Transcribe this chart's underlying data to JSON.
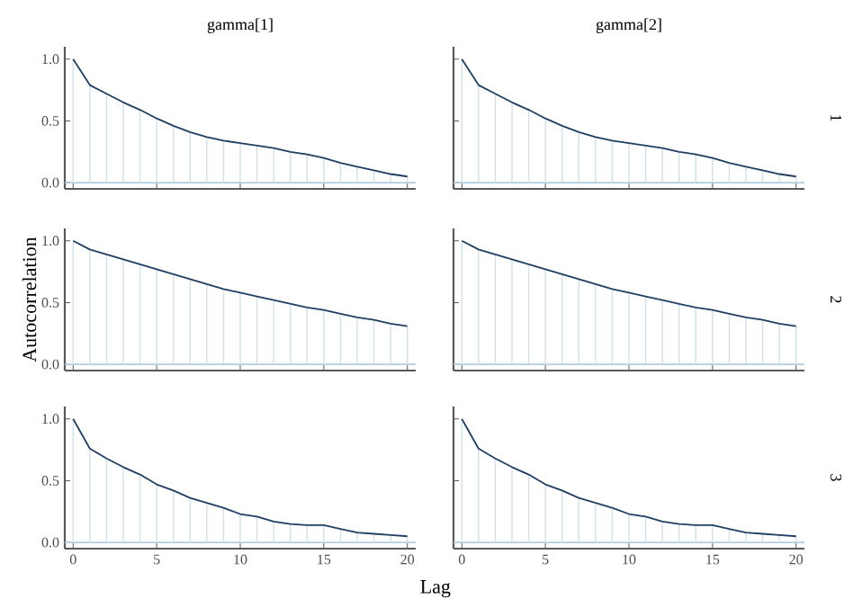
{
  "chart_data": [
    {
      "type": "line",
      "title": "gamma[1]",
      "x": [
        0,
        1,
        2,
        3,
        4,
        5,
        6,
        7,
        8,
        9,
        10,
        11,
        12,
        13,
        14,
        15,
        16,
        17,
        18,
        19,
        20
      ],
      "xlim": [
        -0.5,
        20.5
      ],
      "xticks": [
        0,
        5,
        10,
        15,
        20
      ],
      "ylim": [
        -0.05,
        1.1
      ],
      "yticks": [
        {
          "value": 0,
          "label": "0.0"
        },
        {
          "value": 0.5,
          "label": "0.5"
        },
        {
          "value": 1,
          "label": "1.0"
        }
      ],
      "tick_labels": "y",
      "series": [
        {
          "type": "bar",
          "color": "#d1e1ec",
          "values": [
            1,
            0.79,
            0.72,
            0.65,
            0.59,
            0.52,
            0.46,
            0.41,
            0.37,
            0.34,
            0.32,
            0.3,
            0.28,
            0.25,
            0.23,
            0.2,
            0.16,
            0.13,
            0.1,
            0.07,
            0.05
          ]
        },
        {
          "color": "#1f3f62",
          "values": [
            1,
            0.79,
            0.72,
            0.65,
            0.59,
            0.52,
            0.46,
            0.41,
            0.37,
            0.34,
            0.32,
            0.3,
            0.28,
            0.25,
            0.23,
            0.2,
            0.16,
            0.13,
            0.1,
            0.07,
            0.05
          ]
        }
      ],
      "ref_lines": [
        {
          "axis": "y",
          "value": 0,
          "color": "#b3cde0"
        }
      ]
    },
    {
      "type": "line",
      "title": "gamma[2]",
      "y2label": "1",
      "x": [
        0,
        1,
        2,
        3,
        4,
        5,
        6,
        7,
        8,
        9,
        10,
        11,
        12,
        13,
        14,
        15,
        16,
        17,
        18,
        19,
        20
      ],
      "xlim": [
        -0.5,
        20.5
      ],
      "xticks": [
        0,
        5,
        10,
        15,
        20
      ],
      "ylim": [
        -0.05,
        1.1
      ],
      "yticks": [
        0,
        0.5,
        1
      ],
      "tick_labels": false,
      "series": [
        {
          "type": "bar",
          "color": "#d1e1ec",
          "values": [
            1,
            0.79,
            0.72,
            0.65,
            0.59,
            0.52,
            0.46,
            0.41,
            0.37,
            0.34,
            0.32,
            0.3,
            0.28,
            0.25,
            0.23,
            0.2,
            0.16,
            0.13,
            0.1,
            0.07,
            0.05
          ]
        },
        {
          "color": "#1f3f62",
          "values": [
            1,
            0.79,
            0.72,
            0.65,
            0.59,
            0.52,
            0.46,
            0.41,
            0.37,
            0.34,
            0.32,
            0.3,
            0.28,
            0.25,
            0.23,
            0.2,
            0.16,
            0.13,
            0.1,
            0.07,
            0.05
          ]
        }
      ],
      "ref_lines": [
        {
          "axis": "y",
          "value": 0,
          "color": "#b3cde0"
        }
      ]
    },
    {
      "type": "line",
      "ylabel": "Autocorrelation",
      "x": [
        0,
        1,
        2,
        3,
        4,
        5,
        6,
        7,
        8,
        9,
        10,
        11,
        12,
        13,
        14,
        15,
        16,
        17,
        18,
        19,
        20
      ],
      "xlim": [
        -0.5,
        20.5
      ],
      "xticks": [
        0,
        5,
        10,
        15,
        20
      ],
      "ylim": [
        -0.05,
        1.1
      ],
      "yticks": [
        {
          "value": 0,
          "label": "0.0"
        },
        {
          "value": 0.5,
          "label": "0.5"
        },
        {
          "value": 1,
          "label": "1.0"
        }
      ],
      "tick_labels": "y",
      "series": [
        {
          "type": "bar",
          "color": "#d1e1ec",
          "values": [
            1,
            0.93,
            0.89,
            0.85,
            0.81,
            0.77,
            0.73,
            0.69,
            0.65,
            0.61,
            0.58,
            0.55,
            0.52,
            0.49,
            0.46,
            0.44,
            0.41,
            0.38,
            0.36,
            0.33,
            0.31
          ]
        },
        {
          "color": "#1f3f62",
          "values": [
            1,
            0.93,
            0.89,
            0.85,
            0.81,
            0.77,
            0.73,
            0.69,
            0.65,
            0.61,
            0.58,
            0.55,
            0.52,
            0.49,
            0.46,
            0.44,
            0.41,
            0.38,
            0.36,
            0.33,
            0.31
          ]
        }
      ],
      "ref_lines": [
        {
          "axis": "y",
          "value": 0,
          "color": "#b3cde0"
        }
      ]
    },
    {
      "type": "line",
      "y2label": "2",
      "x": [
        0,
        1,
        2,
        3,
        4,
        5,
        6,
        7,
        8,
        9,
        10,
        11,
        12,
        13,
        14,
        15,
        16,
        17,
        18,
        19,
        20
      ],
      "xlim": [
        -0.5,
        20.5
      ],
      "xticks": [
        0,
        5,
        10,
        15,
        20
      ],
      "ylim": [
        -0.05,
        1.1
      ],
      "yticks": [
        0,
        0.5,
        1
      ],
      "tick_labels": false,
      "series": [
        {
          "type": "bar",
          "color": "#d1e1ec",
          "values": [
            1,
            0.93,
            0.89,
            0.85,
            0.81,
            0.77,
            0.73,
            0.69,
            0.65,
            0.61,
            0.58,
            0.55,
            0.52,
            0.49,
            0.46,
            0.44,
            0.41,
            0.38,
            0.36,
            0.33,
            0.31
          ]
        },
        {
          "color": "#1f3f62",
          "values": [
            1,
            0.93,
            0.89,
            0.85,
            0.81,
            0.77,
            0.73,
            0.69,
            0.65,
            0.61,
            0.58,
            0.55,
            0.52,
            0.49,
            0.46,
            0.44,
            0.41,
            0.38,
            0.36,
            0.33,
            0.31
          ]
        }
      ],
      "ref_lines": [
        {
          "axis": "y",
          "value": 0,
          "color": "#b3cde0"
        }
      ]
    },
    {
      "type": "line",
      "xlabel": "Lag",
      "x": [
        0,
        1,
        2,
        3,
        4,
        5,
        6,
        7,
        8,
        9,
        10,
        11,
        12,
        13,
        14,
        15,
        16,
        17,
        18,
        19,
        20
      ],
      "xlim": [
        -0.5,
        20.5
      ],
      "xticks": [
        0,
        5,
        10,
        15,
        20
      ],
      "ylim": [
        -0.05,
        1.1
      ],
      "yticks": [
        {
          "value": 0,
          "label": "0.0"
        },
        {
          "value": 0.5,
          "label": "0.5"
        },
        {
          "value": 1,
          "label": "1.0"
        }
      ],
      "series": [
        {
          "type": "bar",
          "color": "#d1e1ec",
          "values": [
            1,
            0.76,
            0.68,
            0.61,
            0.55,
            0.47,
            0.42,
            0.36,
            0.32,
            0.28,
            0.23,
            0.21,
            0.17,
            0.15,
            0.14,
            0.14,
            0.11,
            0.08,
            0.07,
            0.06,
            0.05
          ]
        },
        {
          "color": "#1f3f62",
          "values": [
            1,
            0.76,
            0.68,
            0.61,
            0.55,
            0.47,
            0.42,
            0.36,
            0.32,
            0.28,
            0.23,
            0.21,
            0.17,
            0.15,
            0.14,
            0.14,
            0.11,
            0.08,
            0.07,
            0.06,
            0.05
          ]
        }
      ],
      "ref_lines": [
        {
          "axis": "y",
          "value": 0,
          "color": "#b3cde0"
        }
      ]
    },
    {
      "type": "line",
      "y2label": "3",
      "x": [
        0,
        1,
        2,
        3,
        4,
        5,
        6,
        7,
        8,
        9,
        10,
        11,
        12,
        13,
        14,
        15,
        16,
        17,
        18,
        19,
        20
      ],
      "xlim": [
        -0.5,
        20.5
      ],
      "xticks": [
        0,
        5,
        10,
        15,
        20
      ],
      "ylim": [
        -0.05,
        1.1
      ],
      "yticks": [
        0,
        0.5,
        1
      ],
      "tick_labels": "x",
      "series": [
        {
          "type": "bar",
          "color": "#d1e1ec",
          "values": [
            1,
            0.76,
            0.68,
            0.61,
            0.55,
            0.47,
            0.42,
            0.36,
            0.32,
            0.28,
            0.23,
            0.21,
            0.17,
            0.15,
            0.14,
            0.14,
            0.11,
            0.08,
            0.07,
            0.06,
            0.05
          ]
        },
        {
          "color": "#1f3f62",
          "values": [
            1,
            0.76,
            0.68,
            0.61,
            0.55,
            0.47,
            0.42,
            0.36,
            0.32,
            0.28,
            0.23,
            0.21,
            0.17,
            0.15,
            0.14,
            0.14,
            0.11,
            0.08,
            0.07,
            0.06,
            0.05
          ]
        }
      ],
      "ref_lines": [
        {
          "axis": "y",
          "value": 0,
          "color": "#b3cde0"
        }
      ]
    }
  ]
}
